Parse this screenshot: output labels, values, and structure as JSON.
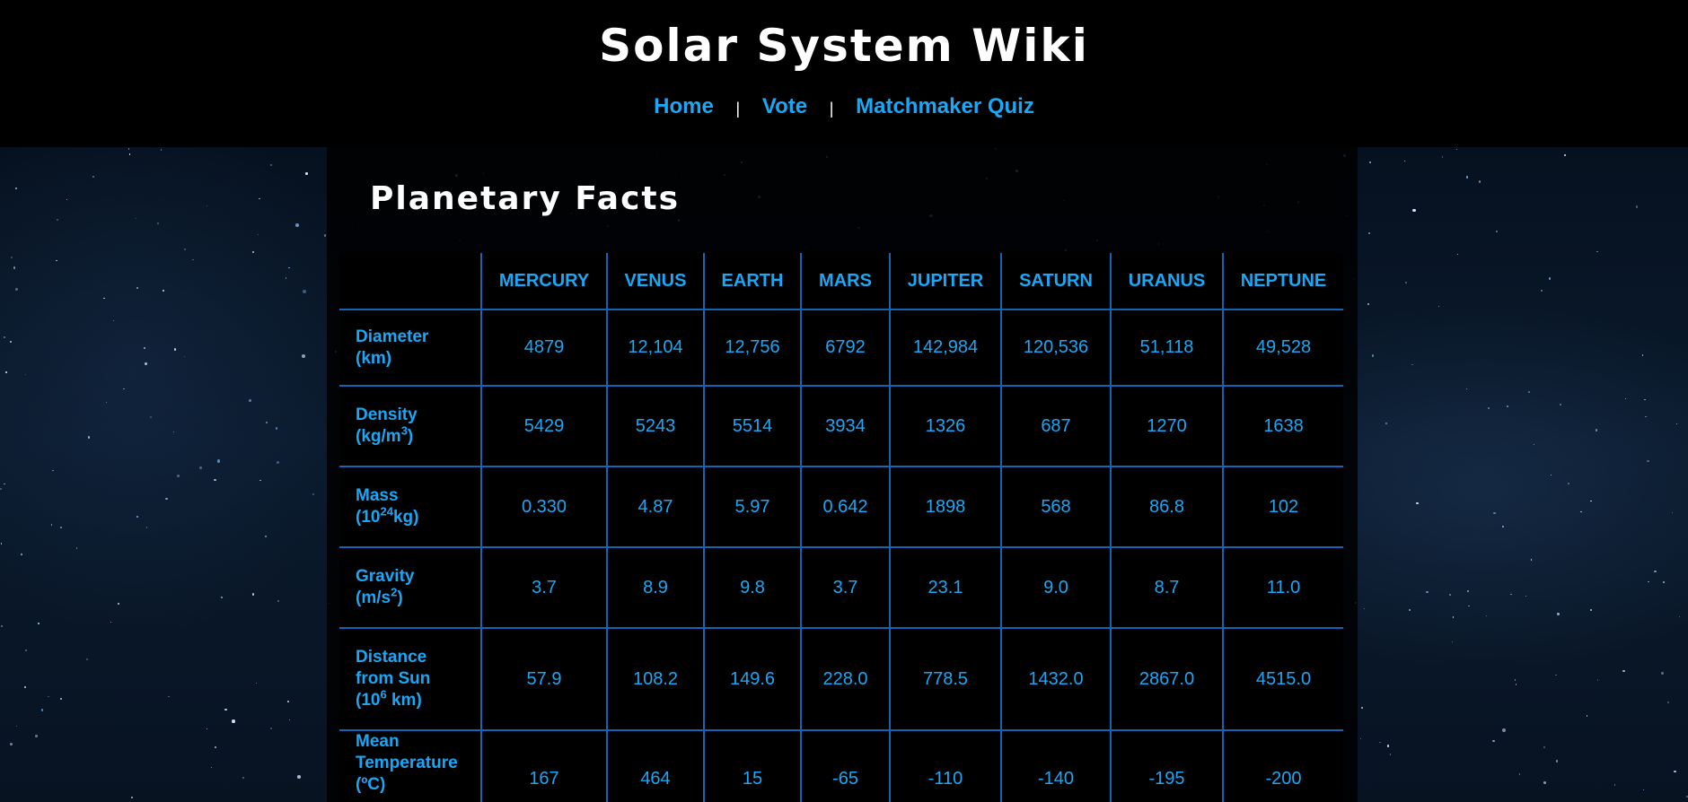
{
  "header": {
    "site_title": "Solar System Wiki",
    "nav": [
      {
        "label": "Home"
      },
      {
        "label": "Vote"
      },
      {
        "label": "Matchmaker Quiz"
      }
    ],
    "separator": "|"
  },
  "main": {
    "title": "Planetary Facts",
    "planets": [
      "MERCURY",
      "VENUS",
      "EARTH",
      "MARS",
      "JUPITER",
      "SATURN",
      "URANUS",
      "NEPTUNE"
    ],
    "rows": [
      {
        "label_lines": [
          "Diameter",
          "(km)"
        ],
        "values": [
          "4879",
          "12,104",
          "12,756",
          "6792",
          "142,984",
          "120,536",
          "51,118",
          "49,528"
        ]
      },
      {
        "label_lines": [
          "Density",
          "(kg/m",
          "3",
          ")"
        ],
        "values": [
          "5429",
          "5243",
          "5514",
          "3934",
          "1326",
          "687",
          "1270",
          "1638"
        ]
      },
      {
        "label_lines": [
          "Mass",
          "(10",
          "24",
          "kg)"
        ],
        "values": [
          "0.330",
          "4.87",
          "5.97",
          "0.642",
          "1898",
          "568",
          "86.8",
          "102"
        ]
      },
      {
        "label_lines": [
          "Gravity",
          "(m/s",
          "2",
          ")"
        ],
        "values": [
          "3.7",
          "8.9",
          "9.8",
          "3.7",
          "23.1",
          "9.0",
          "8.7",
          "11.0"
        ]
      },
      {
        "label_lines": [
          "Distance",
          "from Sun",
          "(10",
          "6",
          " km)"
        ],
        "values": [
          "57.9",
          "108.2",
          "149.6",
          "228.0",
          "778.5",
          "1432.0",
          "2867.0",
          "4515.0"
        ]
      },
      {
        "label_lines": [
          "Mean",
          "Temperature",
          "(ºC)"
        ],
        "values": [
          "167",
          "464",
          "15",
          "-65",
          "-110",
          "-140",
          "-195",
          "-200"
        ]
      }
    ]
  },
  "colors": {
    "accent": "#1aa7f5",
    "table_border": "#1464b4",
    "background": "#000000",
    "title_text": "#ffffff"
  }
}
